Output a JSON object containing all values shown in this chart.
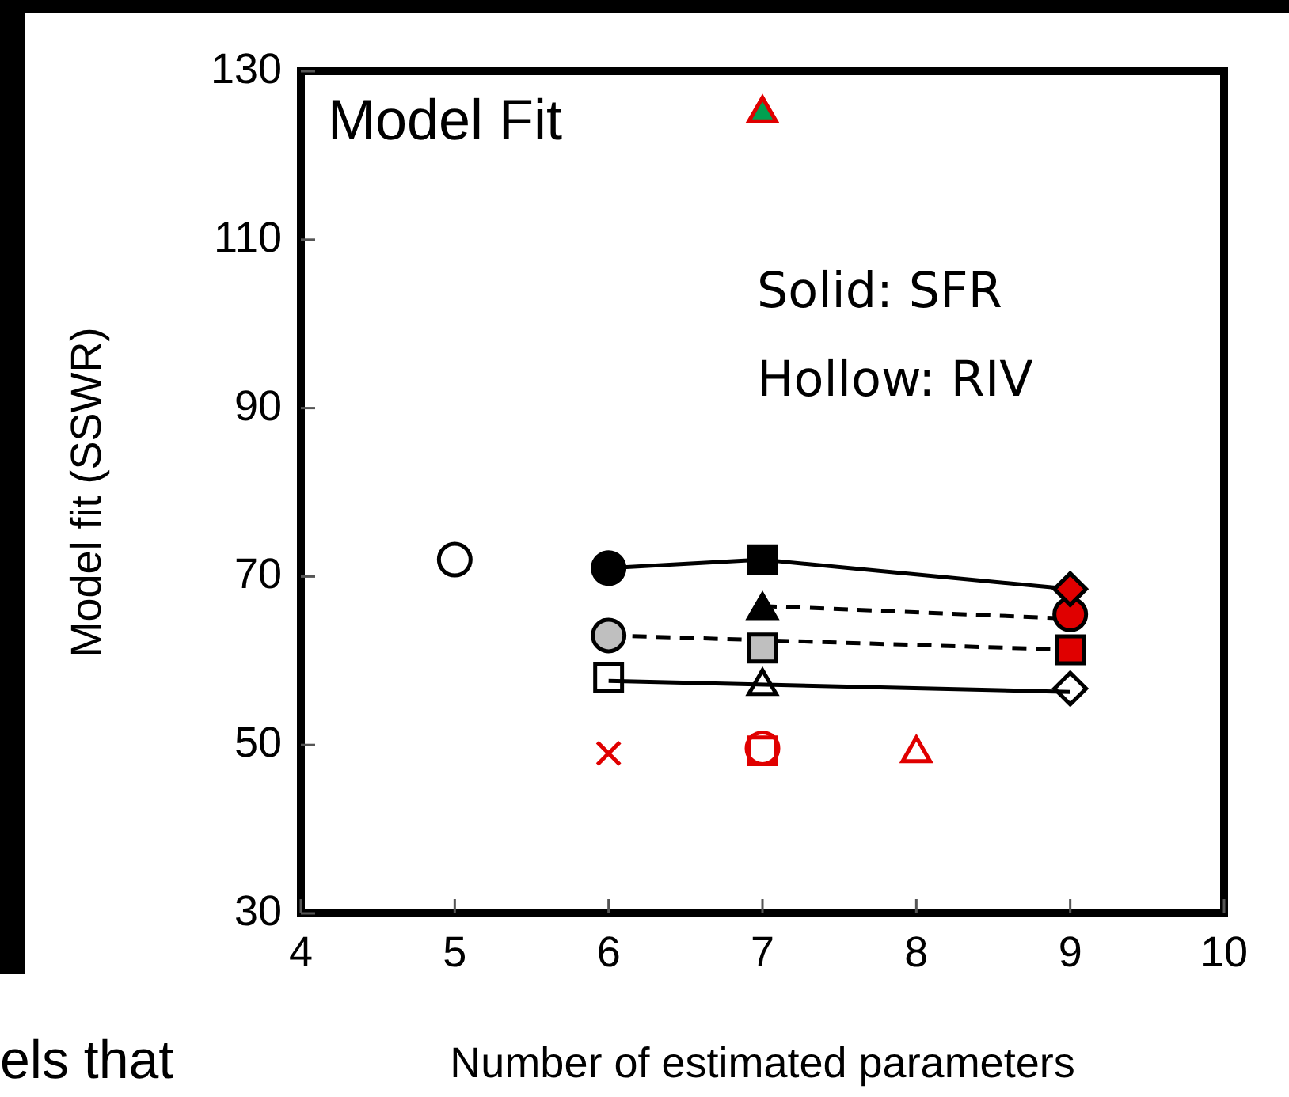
{
  "chart_data": {
    "type": "scatter",
    "xlabel": "Number of estimated parameters",
    "ylabel": "Model fit (SSWR)",
    "xlim": [
      4,
      10
    ],
    "xticks": [
      4,
      5,
      6,
      7,
      8,
      9,
      10
    ],
    "ylim": [
      30,
      130
    ],
    "yticks": [
      30,
      50,
      70,
      90,
      110,
      130
    ],
    "grid": false,
    "legend": false,
    "annotations": [
      "Model Fit",
      "Solid: SFR",
      "Hollow: RIV",
      "els that"
    ],
    "series": [
      {
        "type": "line",
        "line_style": "solid",
        "marker": "none",
        "color": "#000000",
        "x": [
          6,
          7,
          9
        ],
        "values": [
          71,
          72,
          68.5
        ]
      },
      {
        "type": "line",
        "line_style": "dashed",
        "marker": "none",
        "color": "#000000",
        "x": [
          7,
          9
        ],
        "values": [
          66.5,
          65
        ]
      },
      {
        "type": "line",
        "line_style": "dashed",
        "marker": "none",
        "color": "#000000",
        "x": [
          6,
          9
        ],
        "values": [
          63,
          61.3
        ]
      },
      {
        "type": "line",
        "line_style": "solid",
        "marker": "none",
        "color": "#000000",
        "x": [
          6,
          9
        ],
        "values": [
          57.6,
          56.3
        ]
      },
      {
        "marker": "circle",
        "color": "#000000",
        "x": [
          5
        ],
        "values": [
          72
        ]
      },
      {
        "marker": "circle",
        "color": "#000000",
        "colors": [
          "#000000"
        ],
        "x": [
          6
        ],
        "values": [
          71
        ]
      },
      {
        "marker": "square",
        "color": "#000000",
        "colors": [
          "#000000"
        ],
        "x": [
          7
        ],
        "values": [
          72
        ]
      },
      {
        "marker": "diamond",
        "color": "#000000",
        "colors": [
          "#e00000"
        ],
        "x": [
          9
        ],
        "values": [
          68.5
        ]
      },
      {
        "marker": "triangle",
        "color": "#000000",
        "colors": [
          "#000000"
        ],
        "x": [
          7
        ],
        "values": [
          66
        ]
      },
      {
        "marker": "circle",
        "color": "#000000",
        "colors": [
          "#e00000"
        ],
        "x": [
          9
        ],
        "values": [
          65.5
        ]
      },
      {
        "marker": "circle",
        "color": "#000000",
        "colors": [
          "#bfbfbf"
        ],
        "x": [
          6
        ],
        "values": [
          63
        ]
      },
      {
        "marker": "square",
        "color": "#000000",
        "colors": [
          "#bfbfbf"
        ],
        "x": [
          7
        ],
        "values": [
          61.5
        ]
      },
      {
        "marker": "square",
        "color": "#000000",
        "colors": [
          "#e00000"
        ],
        "x": [
          9
        ],
        "values": [
          61.3
        ]
      },
      {
        "marker": "square",
        "color": "#000000",
        "x": [
          6
        ],
        "values": [
          58
        ]
      },
      {
        "marker": "triangle",
        "color": "#000000",
        "x": [
          7
        ],
        "values": [
          57
        ]
      },
      {
        "marker": "diamond",
        "color": "#000000",
        "x": [
          9
        ],
        "values": [
          56.7
        ]
      },
      {
        "marker": "cross",
        "color": "#e00000",
        "x": [
          6
        ],
        "values": [
          49
        ]
      },
      {
        "marker": "square",
        "color": "#e00000",
        "x": [
          7
        ],
        "values": [
          49.3
        ]
      },
      {
        "marker": "circle",
        "color": "#e00000",
        "x": [
          7
        ],
        "values": [
          49.6
        ]
      },
      {
        "marker": "triangle",
        "color": "#e00000",
        "x": [
          8
        ],
        "values": [
          49
        ]
      },
      {
        "marker": "triangle",
        "color": "#e00000",
        "colors": [
          "#00a050"
        ],
        "x": [
          7
        ],
        "values": [
          125
        ]
      }
    ]
  }
}
